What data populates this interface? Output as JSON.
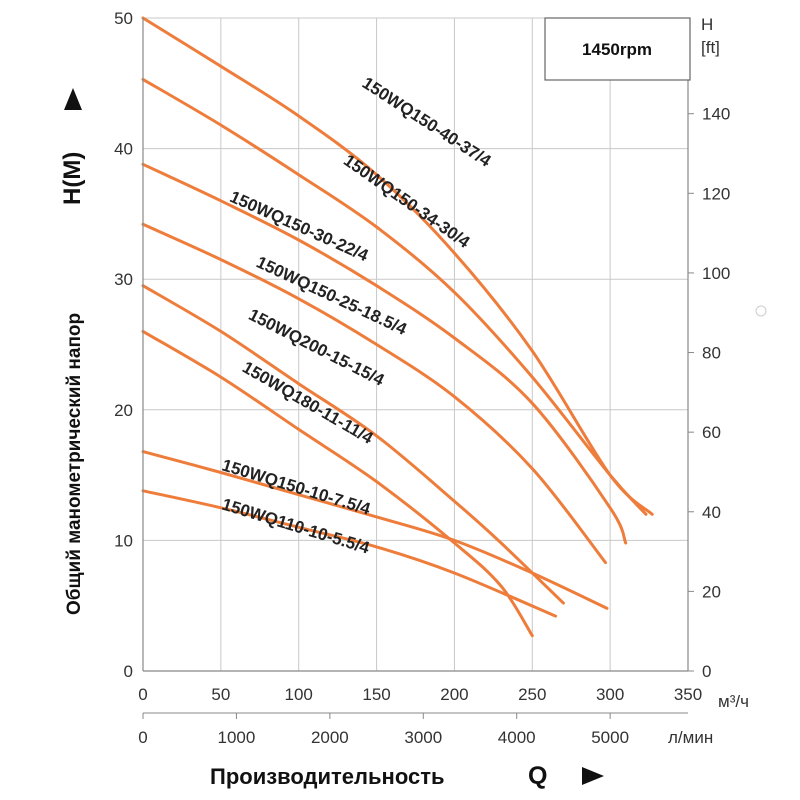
{
  "chart_data": {
    "type": "line",
    "speed_label": "1450rpm",
    "ylabel": "Общий манометрический напор",
    "ylabel_symbol": "H(M)",
    "xlabel": "Производительность",
    "xlabel_symbol": "Q",
    "x_unit_primary": "м³/ч",
    "x_unit_secondary": "л/мин",
    "right_axis_label_line1": "H",
    "right_axis_label_line2": "[ft]",
    "xlim": [
      0,
      350
    ],
    "ylim": [
      0,
      50
    ],
    "grid": true,
    "x_ticks": [
      0,
      50,
      100,
      150,
      200,
      250,
      300,
      350
    ],
    "y_ticks": [
      0,
      10,
      20,
      30,
      40,
      50
    ],
    "x_ticks_secondary": [
      0,
      1000,
      2000,
      3000,
      4000,
      5000
    ],
    "y_ticks_right": [
      0,
      20,
      40,
      60,
      80,
      100,
      120,
      140
    ],
    "line_color": "#ee7d3c",
    "series": [
      {
        "name": "150WQ150-40-37/4",
        "x": [
          0,
          50,
          100,
          150,
          200,
          250,
          300,
          327
        ],
        "y": [
          50,
          46.3,
          42.5,
          38,
          32,
          24.5,
          15,
          12
        ]
      },
      {
        "name": "150WQ150-34-30/4",
        "x": [
          0,
          50,
          100,
          150,
          200,
          250,
          300,
          323
        ],
        "y": [
          45.3,
          41.8,
          38,
          34,
          29,
          22.5,
          15,
          12
        ]
      },
      {
        "name": "150WQ150-30-22/4",
        "x": [
          0,
          50,
          100,
          150,
          200,
          250,
          300,
          310
        ],
        "y": [
          38.8,
          36,
          33,
          29.5,
          25.5,
          20.5,
          12.5,
          9.8
        ]
      },
      {
        "name": "150WQ150-25-18.5/4",
        "x": [
          0,
          50,
          100,
          150,
          200,
          250,
          297
        ],
        "y": [
          34.2,
          31.5,
          28.5,
          25,
          21,
          15.5,
          8.3
        ]
      },
      {
        "name": "150WQ200-15-15/4",
        "x": [
          0,
          50,
          100,
          150,
          200,
          230,
          270
        ],
        "y": [
          29.5,
          26,
          22,
          18,
          13,
          9.8,
          5.2
        ]
      },
      {
        "name": "150WQ180-11-11/4",
        "x": [
          0,
          50,
          100,
          150,
          200,
          230,
          250
        ],
        "y": [
          26,
          22.5,
          18.5,
          14.5,
          9.8,
          6.5,
          2.7
        ]
      },
      {
        "name": "150WQ150-10-7.5/4",
        "x": [
          0,
          50,
          100,
          150,
          200,
          250,
          298
        ],
        "y": [
          16.8,
          15.2,
          13.5,
          11.8,
          10,
          7.5,
          4.8
        ]
      },
      {
        "name": "150WQ110-10-5.5/4",
        "x": [
          0,
          50,
          100,
          150,
          200,
          265
        ],
        "y": [
          13.8,
          12.5,
          11,
          9.5,
          7.5,
          4.2
        ]
      }
    ]
  }
}
